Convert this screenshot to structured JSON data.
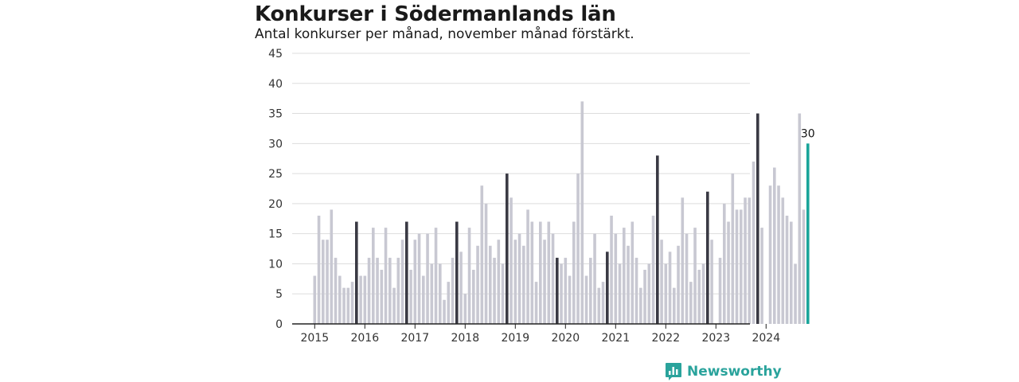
{
  "title": "Konkurser i Södermanlands län",
  "subtitle": "Antal konkurser per månad, november månad förstärkt.",
  "brand": {
    "name": "Newsworthy"
  },
  "colors": {
    "regular": "#c8c8d2",
    "highlight": "#3a3a44",
    "latest": "#1aa59a",
    "grid": "#dddddd",
    "axis": "#222222"
  },
  "chart_data": {
    "type": "bar",
    "title": "Konkurser i Södermanlands län",
    "subtitle": "Antal konkurser per månad, november månad förstärkt.",
    "xlabel": "",
    "ylabel": "",
    "ylim": [
      0,
      45
    ],
    "yticks": [
      0,
      5,
      10,
      15,
      20,
      25,
      30,
      35,
      40,
      45
    ],
    "xticks": [
      "2015",
      "2016",
      "2017",
      "2018",
      "2019",
      "2020",
      "2021",
      "2022",
      "2023",
      "2024"
    ],
    "grid": true,
    "highlight_month": "november",
    "start": "2015-01",
    "end": "2024-11",
    "values": [
      8,
      18,
      14,
      14,
      19,
      11,
      8,
      6,
      6,
      7,
      17,
      8,
      8,
      11,
      16,
      11,
      9,
      16,
      11,
      6,
      11,
      14,
      17,
      9,
      14,
      15,
      8,
      15,
      10,
      16,
      10,
      4,
      7,
      11,
      17,
      12,
      5,
      16,
      9,
      13,
      23,
      20,
      13,
      11,
      14,
      10,
      25,
      21,
      14,
      15,
      13,
      19,
      17,
      7,
      17,
      14,
      17,
      15,
      11,
      10,
      11,
      8,
      17,
      25,
      37,
      8,
      11,
      15,
      6,
      7,
      12,
      18,
      15,
      10,
      16,
      13,
      17,
      11,
      6,
      9,
      10,
      18,
      28,
      14,
      10,
      12,
      6,
      13,
      21,
      15,
      7,
      16,
      9,
      10,
      22,
      14,
      0,
      11,
      20,
      17,
      25,
      19,
      19,
      21,
      21,
      27,
      35,
      16,
      0,
      23,
      26,
      23,
      21,
      18,
      17,
      10,
      35,
      19,
      30
    ],
    "annotations": [
      {
        "text": "30",
        "target": "2024-11"
      }
    ]
  }
}
